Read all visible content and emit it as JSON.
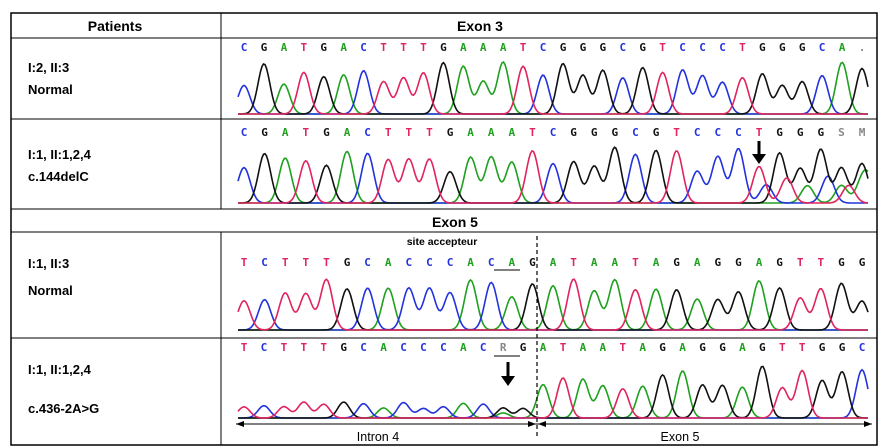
{
  "header": {
    "patients_label": "Patients"
  },
  "sections": [
    {
      "title": "Exon 3",
      "rows": [
        {
          "label_lines": [
            "I:2, II:3",
            "Normal"
          ],
          "sequence": "CGATGACTTTGAAATCGGGCGTCCCTGGGCA."
        },
        {
          "label_lines": [
            "I:1, II:1,2,4",
            "c.144delC"
          ],
          "sequence": "CGATGACTTTGAAATCGGGCGTCCCTGGGSM"
        }
      ]
    },
    {
      "title": "Exon 5",
      "site_label": "site accepteur",
      "rows": [
        {
          "label_lines": [
            "I:1, II:3",
            "Normal"
          ],
          "sequence": "TCTTTGCACCCACAGATAATAGAGGAGTTGG"
        },
        {
          "label_lines": [
            "I:1, II:1,2,4",
            "c.436-2A>G"
          ],
          "sequence": "TCTTTGCACCCACRGATAATAGAGGAGTTGGC"
        }
      ],
      "regions": [
        {
          "label": "Intron 4"
        },
        {
          "label": "Exon 5"
        }
      ]
    }
  ],
  "base_colors": {
    "A": "#1fa01f",
    "C": "#2233dd",
    "G": "#111111",
    "T": "#e0245e",
    "other": "#888888"
  }
}
